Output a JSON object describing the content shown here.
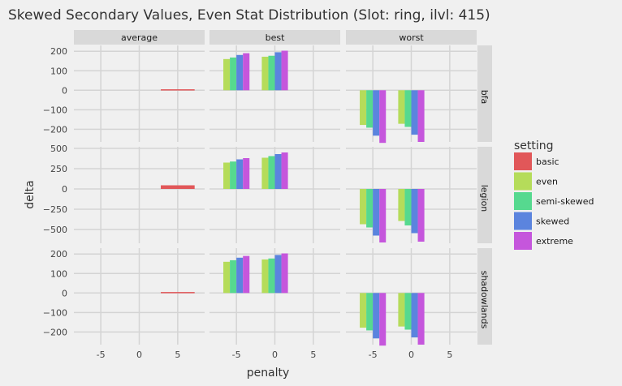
{
  "chart_data": {
    "type": "bar",
    "title": "Skewed Secondary Values, Even Stat Distribution (Slot: ring, ilvl: 415)",
    "xlabel": "penalty",
    "ylabel": "delta",
    "facet_cols": [
      "average",
      "best",
      "worst"
    ],
    "facet_rows": [
      "bfa",
      "legion",
      "shadowlands"
    ],
    "x_ticks": [
      "-5",
      "0",
      "5"
    ],
    "x_range": [
      -8.5,
      8.5
    ],
    "rows": {
      "bfa": {
        "y_range": [
          -265,
          230
        ],
        "y_ticks": [
          200,
          100,
          0,
          -100,
          -200
        ],
        "y_tick_labels": [
          "200",
          "100",
          "0",
          "−100",
          "−200"
        ]
      },
      "legion": {
        "y_range": [
          -670,
          520
        ],
        "y_ticks": [
          500,
          250,
          0,
          -250,
          -500
        ],
        "y_tick_labels": [
          "500",
          "250",
          "0",
          "−250",
          "−500"
        ]
      },
      "shadowlands": {
        "y_range": [
          -265,
          230
        ],
        "y_ticks": [
          200,
          100,
          0,
          -100,
          -200
        ],
        "y_tick_labels": [
          "200",
          "100",
          "0",
          "−100",
          "−200"
        ]
      }
    },
    "legend_title": "setting",
    "legend_position": "right",
    "grid": true,
    "series": [
      {
        "name": "basic",
        "color": "#e15759"
      },
      {
        "name": "even",
        "color": "#b5dc5a"
      },
      {
        "name": "semi-skewed",
        "color": "#56d98f"
      },
      {
        "name": "skewed",
        "color": "#5b84de"
      },
      {
        "name": "extreme",
        "color": "#c556dc"
      }
    ],
    "bars": {
      "bfa": {
        "average": [
          {
            "series": "basic",
            "x": 5,
            "value": 5
          }
        ],
        "best": [
          {
            "series": "even",
            "x": -5,
            "value": 160
          },
          {
            "series": "semi-skewed",
            "x": -5,
            "value": 168
          },
          {
            "series": "skewed",
            "x": -5,
            "value": 181
          },
          {
            "series": "extreme",
            "x": -5,
            "value": 190
          },
          {
            "series": "even",
            "x": 0,
            "value": 172
          },
          {
            "series": "semi-skewed",
            "x": 0,
            "value": 177
          },
          {
            "series": "skewed",
            "x": 0,
            "value": 195
          },
          {
            "series": "extreme",
            "x": 0,
            "value": 203
          }
        ],
        "worst": [
          {
            "series": "even",
            "x": -5,
            "value": -178
          },
          {
            "series": "semi-skewed",
            "x": -5,
            "value": -192
          },
          {
            "series": "skewed",
            "x": -5,
            "value": -233
          },
          {
            "series": "extreme",
            "x": -5,
            "value": -270
          },
          {
            "series": "even",
            "x": 0,
            "value": -172
          },
          {
            "series": "semi-skewed",
            "x": 0,
            "value": -188
          },
          {
            "series": "skewed",
            "x": 0,
            "value": -228
          },
          {
            "series": "extreme",
            "x": 0,
            "value": -265
          }
        ]
      },
      "legion": {
        "average": [
          {
            "series": "basic",
            "x": 5,
            "value": 45
          }
        ],
        "best": [
          {
            "series": "even",
            "x": -5,
            "value": 325
          },
          {
            "series": "semi-skewed",
            "x": -5,
            "value": 338
          },
          {
            "series": "skewed",
            "x": -5,
            "value": 365
          },
          {
            "series": "extreme",
            "x": -5,
            "value": 380
          },
          {
            "series": "even",
            "x": 0,
            "value": 385
          },
          {
            "series": "semi-skewed",
            "x": 0,
            "value": 405
          },
          {
            "series": "skewed",
            "x": 0,
            "value": 430
          },
          {
            "series": "extreme",
            "x": 0,
            "value": 450
          }
        ],
        "worst": [
          {
            "series": "even",
            "x": -5,
            "value": -435
          },
          {
            "series": "semi-skewed",
            "x": -5,
            "value": -475
          },
          {
            "series": "skewed",
            "x": -5,
            "value": -575
          },
          {
            "series": "extreme",
            "x": -5,
            "value": -660
          },
          {
            "series": "even",
            "x": 0,
            "value": -395
          },
          {
            "series": "semi-skewed",
            "x": 0,
            "value": -450
          },
          {
            "series": "skewed",
            "x": 0,
            "value": -545
          },
          {
            "series": "extreme",
            "x": 0,
            "value": -650
          }
        ]
      },
      "shadowlands": {
        "average": [
          {
            "series": "basic",
            "x": 5,
            "value": 5
          }
        ],
        "best": [
          {
            "series": "even",
            "x": -5,
            "value": 160
          },
          {
            "series": "semi-skewed",
            "x": -5,
            "value": 168
          },
          {
            "series": "skewed",
            "x": -5,
            "value": 181
          },
          {
            "series": "extreme",
            "x": -5,
            "value": 190
          },
          {
            "series": "even",
            "x": 0,
            "value": 172
          },
          {
            "series": "semi-skewed",
            "x": 0,
            "value": 177
          },
          {
            "series": "skewed",
            "x": 0,
            "value": 195
          },
          {
            "series": "extreme",
            "x": 0,
            "value": 203
          }
        ],
        "worst": [
          {
            "series": "even",
            "x": -5,
            "value": -178
          },
          {
            "series": "semi-skewed",
            "x": -5,
            "value": -192
          },
          {
            "series": "skewed",
            "x": -5,
            "value": -233
          },
          {
            "series": "extreme",
            "x": -5,
            "value": -270
          },
          {
            "series": "even",
            "x": 0,
            "value": -172
          },
          {
            "series": "semi-skewed",
            "x": 0,
            "value": -188
          },
          {
            "series": "skewed",
            "x": 0,
            "value": -228
          },
          {
            "series": "extreme",
            "x": 0,
            "value": -265
          }
        ]
      }
    }
  }
}
